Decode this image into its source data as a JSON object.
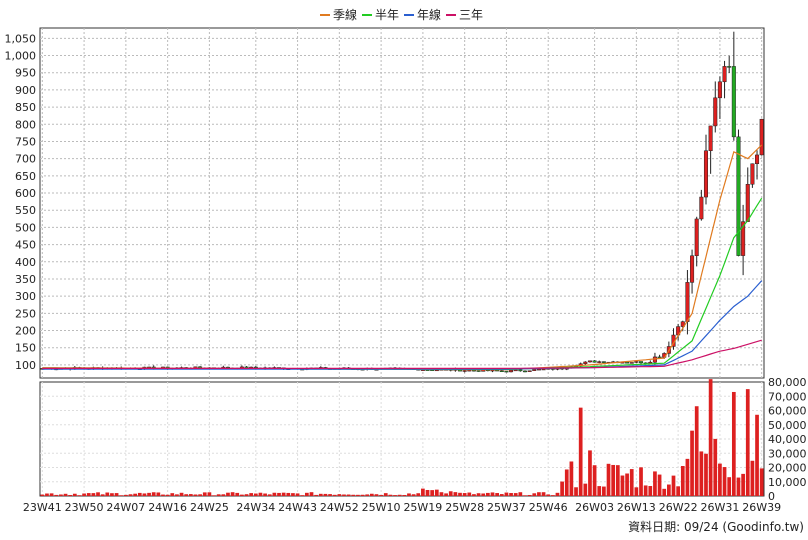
{
  "chart_data": {
    "type": "candlestick_with_volume",
    "legend": [
      {
        "name": "季線",
        "color": "#e07b20"
      },
      {
        "name": "半年",
        "color": "#22cc22"
      },
      {
        "name": "年線",
        "color": "#2a5fd0"
      },
      {
        "name": "三年",
        "color": "#cc1166"
      }
    ],
    "legend_position": "top-center",
    "x_ticks": [
      "23W41",
      "23W50",
      "24W07",
      "24W16",
      "24W25",
      "24W34",
      "24W43",
      "24W52",
      "25W10",
      "25W19",
      "25W28",
      "25W37",
      "25W46",
      "26W03",
      "26W13",
      "26W22",
      "26W31",
      "26W39"
    ],
    "price_axis": {
      "ylim": [
        62,
        1080
      ],
      "ticks": [
        100,
        150,
        200,
        250,
        300,
        350,
        400,
        450,
        500,
        550,
        600,
        650,
        700,
        750,
        800,
        850,
        900,
        950,
        1000,
        1050
      ],
      "tick_labels": [
        "100",
        "150",
        "200",
        "250",
        "300",
        "350",
        "400",
        "450",
        "500",
        "550",
        "600",
        "650",
        "700",
        "750",
        "800",
        "850",
        "900",
        "950",
        "1,000",
        "1,050"
      ],
      "position": "left"
    },
    "volume_axis": {
      "ylim": [
        0,
        80000
      ],
      "ticks": [
        0,
        10000,
        20000,
        30000,
        40000,
        50000,
        60000,
        70000,
        80000
      ],
      "tick_labels": [
        "0",
        "10,000",
        "20,000",
        "30,000",
        "40,000",
        "50,000",
        "60,000",
        "70,000",
        "80,000"
      ],
      "position": "right"
    },
    "grid": true,
    "candle_colors": {
      "up": "#dd2020",
      "down": "#22aa22"
    },
    "volume_color": "#dd2020",
    "price_series": {
      "description": "weekly OHLC from 23W41 to 26W39",
      "weeks": 156,
      "keypoints": [
        {
          "week_index": 0,
          "close": 90
        },
        {
          "week_index": 40,
          "close": 92
        },
        {
          "week_index": 80,
          "close": 88
        },
        {
          "week_index": 100,
          "close": 82
        },
        {
          "week_index": 112,
          "close": 90
        },
        {
          "week_index": 118,
          "close": 110
        },
        {
          "week_index": 130,
          "close": 108
        },
        {
          "week_index": 134,
          "close": 135
        },
        {
          "week_index": 138,
          "close": 240
        },
        {
          "week_index": 142,
          "close": 600
        },
        {
          "week_index": 146,
          "close": 950
        },
        {
          "week_index": 148,
          "close": 1020
        },
        {
          "week_index": 150,
          "close": 440
        },
        {
          "week_index": 152,
          "close": 650
        },
        {
          "week_index": 155,
          "close": 805
        }
      ]
    },
    "moving_averages": {
      "季線": [
        [
          0,
          92
        ],
        [
          100,
          86
        ],
        [
          118,
          100
        ],
        [
          134,
          120
        ],
        [
          140,
          250
        ],
        [
          146,
          580
        ],
        [
          149,
          720
        ],
        [
          152,
          700
        ],
        [
          155,
          740
        ]
      ],
      "半年": [
        [
          0,
          90
        ],
        [
          100,
          87
        ],
        [
          118,
          95
        ],
        [
          134,
          105
        ],
        [
          140,
          170
        ],
        [
          146,
          360
        ],
        [
          149,
          470
        ],
        [
          152,
          520
        ],
        [
          155,
          585
        ]
      ],
      "年線": [
        [
          0,
          88
        ],
        [
          100,
          88
        ],
        [
          118,
          92
        ],
        [
          134,
          100
        ],
        [
          140,
          140
        ],
        [
          146,
          230
        ],
        [
          149,
          270
        ],
        [
          152,
          300
        ],
        [
          155,
          345
        ]
      ],
      "三年": [
        [
          0,
          90
        ],
        [
          100,
          90
        ],
        [
          118,
          92
        ],
        [
          134,
          96
        ],
        [
          140,
          115
        ],
        [
          146,
          140
        ],
        [
          149,
          148
        ],
        [
          152,
          160
        ],
        [
          155,
          172
        ]
      ]
    },
    "volume_highlights": [
      {
        "week_index": 116,
        "value": 62000
      },
      {
        "week_index": 118,
        "value": 32000
      },
      {
        "week_index": 141,
        "value": 63000
      },
      {
        "week_index": 144,
        "value": 82000
      },
      {
        "week_index": 149,
        "value": 73000
      },
      {
        "week_index": 152,
        "value": 75000
      },
      {
        "week_index": 154,
        "value": 57000
      }
    ],
    "footer": "資料日期: 09/24  (Goodinfo.tw)"
  }
}
